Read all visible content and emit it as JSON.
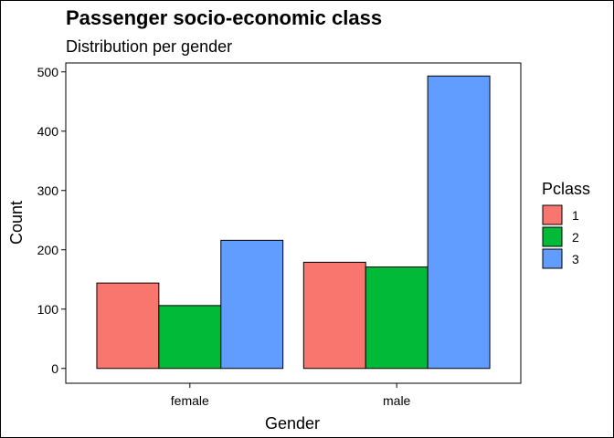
{
  "chart_data": {
    "type": "bar",
    "title": "Passenger socio-economic class",
    "subtitle": "Distribution per gender",
    "xlabel": "Gender",
    "ylabel": "Count",
    "categories": [
      "female",
      "male"
    ],
    "legend_title": "Pclass",
    "legend_position": "right",
    "ylim": [
      -25,
      515
    ],
    "yticks": [
      0,
      100,
      200,
      300,
      400,
      500
    ],
    "grid": false,
    "series": [
      {
        "name": "1",
        "color": "#F8766D",
        "values": [
          144,
          179
        ]
      },
      {
        "name": "2",
        "color": "#00BA38",
        "values": [
          106,
          171
        ]
      },
      {
        "name": "3",
        "color": "#619CFF",
        "values": [
          216,
          493
        ]
      }
    ]
  }
}
